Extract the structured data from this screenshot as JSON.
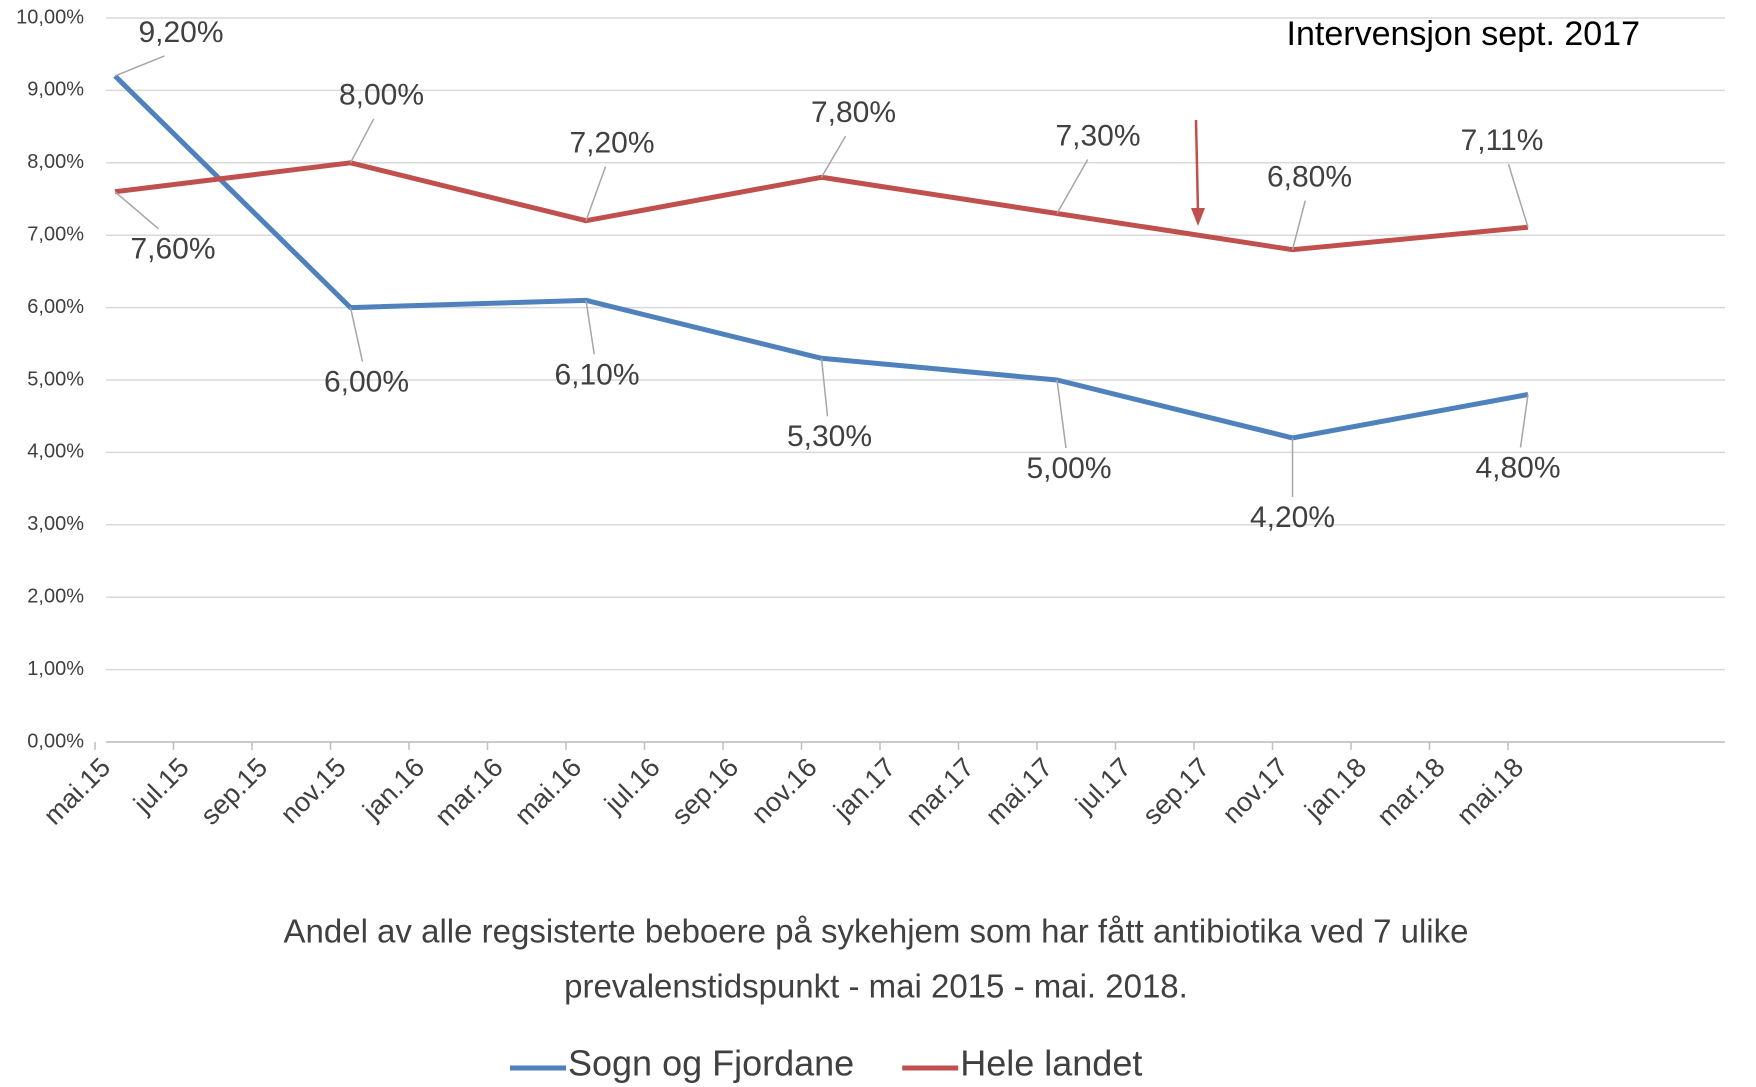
{
  "chart_data": {
    "type": "line",
    "x_axis_label": "Andel av alle regsisterte beboere på sykehjem som har fått antibiotika ved 7 ulike prevalenstidspunkt  - mai 2015 - mai. 2018.",
    "x": [
      "2015-05",
      "2015-11",
      "2016-05",
      "2016-11",
      "2017-05",
      "2017-11",
      "2018-05"
    ],
    "series": [
      {
        "name": "Sogn og Fjordane",
        "color": "#4f81bd",
        "values": [
          9.2,
          6.0,
          6.1,
          5.3,
          5.0,
          4.2,
          4.8
        ],
        "value_labels": [
          "9,20%",
          "6,00%",
          "6,10%",
          "5,30%",
          "5,00%",
          "4,20%",
          "4,80%"
        ]
      },
      {
        "name": "Hele landet",
        "color": "#c0504d",
        "values": [
          7.6,
          8.0,
          7.2,
          7.8,
          7.3,
          6.8,
          7.11
        ],
        "value_labels": [
          "7,60%",
          "8,00%",
          "7,20%",
          "7,80%",
          "7,30%",
          "6,80%",
          "7,11%"
        ]
      }
    ],
    "xlim": [
      "2015-05",
      "2018-05"
    ],
    "xticks": [
      {
        "value": "2015-05",
        "label": "mai.15"
      },
      {
        "value": "2015-07",
        "label": "jul.15"
      },
      {
        "value": "2015-09",
        "label": "sep.15"
      },
      {
        "value": "2015-11",
        "label": "nov.15"
      },
      {
        "value": "2016-01",
        "label": "jan.16"
      },
      {
        "value": "2016-03",
        "label": "mar.16"
      },
      {
        "value": "2016-05",
        "label": "mai.16"
      },
      {
        "value": "2016-07",
        "label": "jul.16"
      },
      {
        "value": "2016-09",
        "label": "sep.16"
      },
      {
        "value": "2016-11",
        "label": "nov.16"
      },
      {
        "value": "2017-01",
        "label": "jan.17"
      },
      {
        "value": "2017-03",
        "label": "mar.17"
      },
      {
        "value": "2017-05",
        "label": "mai.17"
      },
      {
        "value": "2017-07",
        "label": "jul.17"
      },
      {
        "value": "2017-09",
        "label": "sep.17"
      },
      {
        "value": "2017-11",
        "label": "nov.17"
      },
      {
        "value": "2018-01",
        "label": "jan.18"
      },
      {
        "value": "2018-03",
        "label": "mar.18"
      },
      {
        "value": "2018-05",
        "label": "mai.18"
      }
    ],
    "ylim": [
      0,
      10
    ],
    "yticks": [
      {
        "value": 0,
        "label": "0,00%"
      },
      {
        "value": 1,
        "label": "1,00%"
      },
      {
        "value": 2,
        "label": "2,00%"
      },
      {
        "value": 3,
        "label": "3,00%"
      },
      {
        "value": 4,
        "label": "4,00%"
      },
      {
        "value": 5,
        "label": "5,00%"
      },
      {
        "value": 6,
        "label": "6,00%"
      },
      {
        "value": 7,
        "label": "7,00%"
      },
      {
        "value": 8,
        "label": "8,00%"
      },
      {
        "value": 9,
        "label": "9,00%"
      },
      {
        "value": 10,
        "label": "10,00%"
      }
    ],
    "grid": true,
    "legend": "bottom",
    "annotation": {
      "text": "Intervensjon sept. 2017",
      "x": "2017-09",
      "color": "#c0504d"
    }
  }
}
